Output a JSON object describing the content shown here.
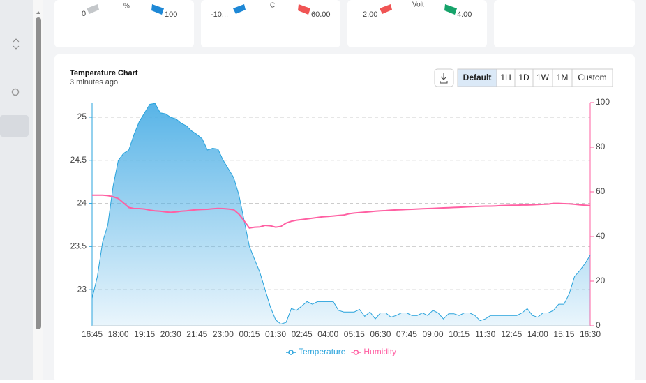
{
  "gauges": [
    {
      "min": "0",
      "unit": "%",
      "max": "100"
    },
    {
      "min": "-10...",
      "unit": "C",
      "max": "60.00"
    },
    {
      "min": "2.00",
      "unit": "Volt",
      "max": "4.00"
    }
  ],
  "chart_card": {
    "buttons": [
      "Default",
      "1H",
      "1D",
      "1W",
      "1M",
      "Custom"
    ]
  },
  "chart_data": {
    "type": "line",
    "title": "Temperature Chart",
    "subtitle": "3 minutes ago",
    "categories": [
      "16:45",
      null,
      null,
      null,
      null,
      "18:00",
      null,
      null,
      null,
      null,
      "19:15",
      null,
      null,
      null,
      null,
      "20:30",
      null,
      null,
      null,
      null,
      "21:45",
      null,
      null,
      null,
      null,
      "23:00",
      null,
      null,
      null,
      null,
      "00:15",
      null,
      null,
      null,
      null,
      "01:30",
      null,
      null,
      null,
      null,
      "02:45",
      null,
      null,
      null,
      null,
      "04:00",
      null,
      null,
      null,
      null,
      "05:15",
      null,
      null,
      null,
      null,
      "06:30",
      null,
      null,
      null,
      null,
      "07:45",
      null,
      null,
      null,
      null,
      "09:00",
      null,
      null,
      null,
      null,
      "10:15",
      null,
      null,
      null,
      null,
      "11:30",
      null,
      null,
      null,
      null,
      "12:45",
      null,
      null,
      null,
      null,
      "14:00",
      null,
      null,
      null,
      null,
      "15:15",
      null,
      null,
      null,
      null,
      "16:30"
    ],
    "series": [
      {
        "name": "Temperature",
        "color": "#29a3dc",
        "area": true,
        "values": [
          22.9,
          23.15,
          23.55,
          23.75,
          24.2,
          24.5,
          24.58,
          24.62,
          24.8,
          24.95,
          25.05,
          25.15,
          25.16,
          25.05,
          25.04,
          25.0,
          24.98,
          24.93,
          24.9,
          24.84,
          24.8,
          24.75,
          24.62,
          24.64,
          24.63,
          24.5,
          24.4,
          24.3,
          24.1,
          23.8,
          23.5,
          23.35,
          23.2,
          23.0,
          22.8,
          22.65,
          22.6,
          22.62,
          22.78,
          22.76,
          22.81,
          22.86,
          22.83,
          22.86,
          22.86,
          22.86,
          22.86,
          22.76,
          22.74,
          22.74,
          22.74,
          22.77,
          22.69,
          22.74,
          22.66,
          22.73,
          22.73,
          22.68,
          22.7,
          22.73,
          22.73,
          22.7,
          22.7,
          22.73,
          22.7,
          22.76,
          22.73,
          22.66,
          22.72,
          22.72,
          22.7,
          22.73,
          22.73,
          22.7,
          22.64,
          22.66,
          22.7,
          22.7,
          22.7,
          22.7,
          22.7,
          22.7,
          22.73,
          22.78,
          22.7,
          22.68,
          22.73,
          22.73,
          22.76,
          22.83,
          22.83,
          22.95,
          23.15,
          23.22,
          23.3,
          23.4
        ]
      },
      {
        "name": "Humidity",
        "color": "#ff5fa2",
        "axis": "y2",
        "values": [
          58.5,
          58.5,
          58.5,
          58.3,
          57.8,
          57,
          55,
          53,
          52.5,
          52.5,
          52.3,
          51.8,
          51.5,
          51.3,
          51,
          50.8,
          51,
          51.3,
          51.5,
          51.8,
          52,
          52.1,
          52.2,
          52.4,
          52.6,
          52.5,
          52.3,
          52,
          50,
          47,
          43.8,
          44.2,
          44.3,
          45,
          44.8,
          44.2,
          44.5,
          46,
          46.8,
          47.3,
          47.6,
          47.9,
          48.2,
          48.5,
          48.8,
          49,
          49.2,
          49.4,
          49.6,
          50.2,
          50.5,
          50.7,
          50.9,
          51.1,
          51.3,
          51.5,
          51.6,
          51.8,
          51.9,
          52,
          52.1,
          52.2,
          52.3,
          52.4,
          52.5,
          52.6,
          52.7,
          52.8,
          52.9,
          53,
          53.1,
          53.2,
          53.3,
          53.4,
          53.5,
          53.6,
          53.6,
          53.7,
          53.8,
          53.9,
          54,
          54,
          54.1,
          54.1,
          54.2,
          54.3,
          54.4,
          54.5,
          54.8,
          54.8,
          54.7,
          54.6,
          54.4,
          54.2,
          54,
          53.8
        ]
      }
    ],
    "ylim": [
      22.58,
      25.17
    ],
    "yticks": [
      23,
      23.5,
      24,
      24.5,
      25
    ],
    "y2lim": [
      0,
      100
    ],
    "y2ticks": [
      0,
      20,
      40,
      60,
      80,
      100
    ],
    "grid": true,
    "legend": "bottom"
  }
}
